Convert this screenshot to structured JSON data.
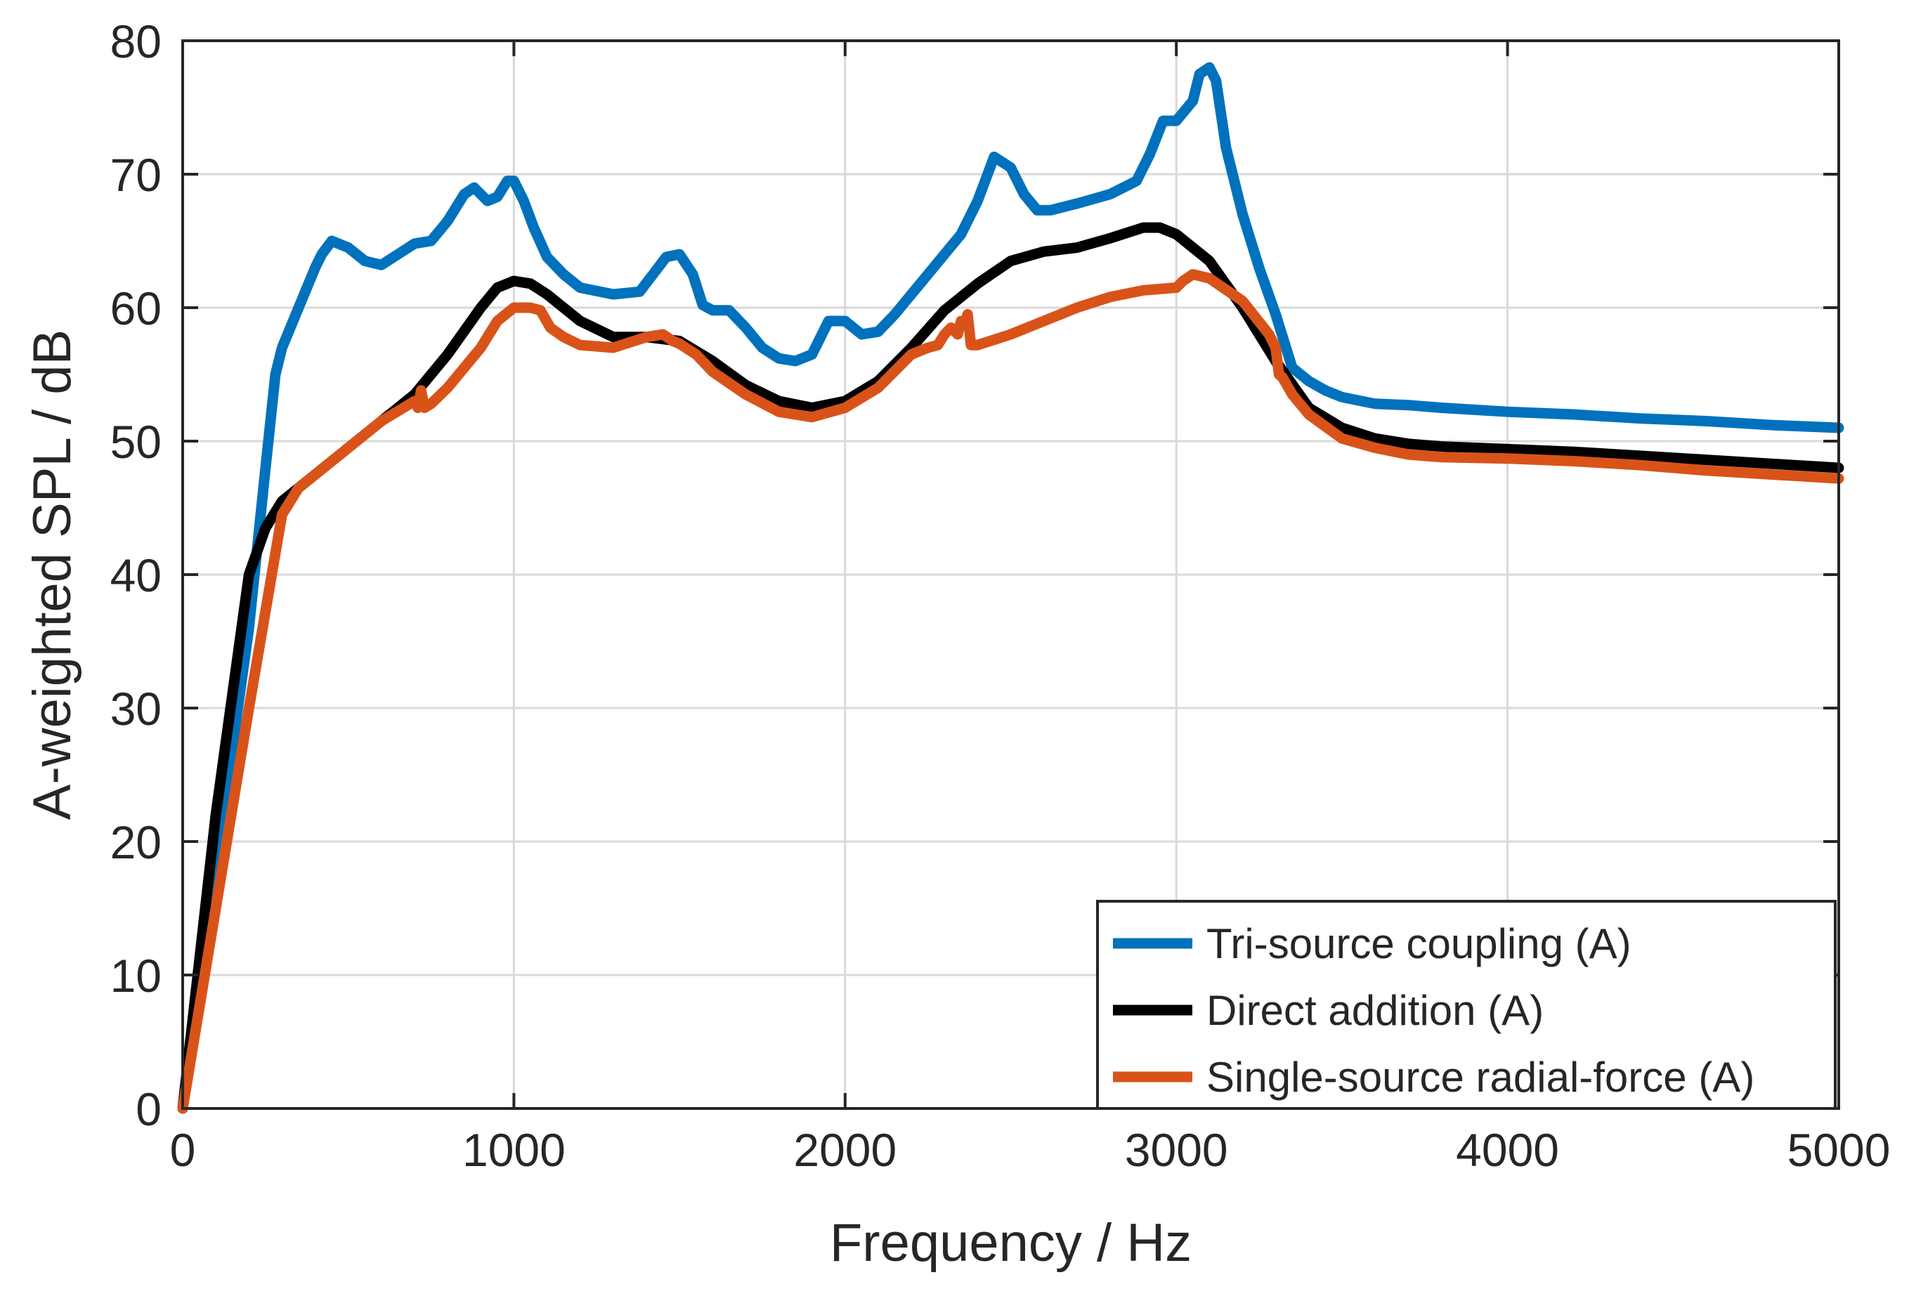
{
  "chart_data": {
    "type": "line",
    "title": "",
    "xlabel": "Frequency / Hz",
    "ylabel": "A-weighted SPL / dB",
    "xlim": [
      0,
      5000
    ],
    "ylim": [
      0,
      80
    ],
    "xticks": [
      0,
      1000,
      2000,
      3000,
      4000,
      5000
    ],
    "yticks": [
      0,
      10,
      20,
      30,
      40,
      50,
      60,
      70,
      80
    ],
    "xtick_labels": [
      "0",
      "1000",
      "2000",
      "3000",
      "4000",
      "5000"
    ],
    "ytick_labels": [
      "0",
      "10",
      "20",
      "30",
      "40",
      "50",
      "60",
      "70",
      "80"
    ],
    "grid": true,
    "legend_position": "bottom-right",
    "series": [
      {
        "name": "Tri-source coupling (A)",
        "color": "#0072BD",
        "x": [
          0,
          100,
          200,
          250,
          280,
          300,
          350,
          400,
          420,
          450,
          500,
          550,
          600,
          650,
          700,
          750,
          800,
          850,
          880,
          920,
          950,
          980,
          1000,
          1030,
          1060,
          1100,
          1150,
          1200,
          1300,
          1380,
          1420,
          1460,
          1500,
          1540,
          1570,
          1600,
          1650,
          1700,
          1750,
          1800,
          1850,
          1900,
          1950,
          2000,
          2050,
          2100,
          2150,
          2200,
          2250,
          2300,
          2350,
          2400,
          2450,
          2500,
          2540,
          2580,
          2620,
          2700,
          2800,
          2880,
          2920,
          2960,
          3000,
          3050,
          3070,
          3100,
          3120,
          3150,
          3200,
          3250,
          3300,
          3350,
          3400,
          3450,
          3500,
          3600,
          3700,
          3800,
          4000,
          4200,
          4400,
          4600,
          4800,
          5000
        ],
        "values": [
          0,
          18,
          36,
          48,
          55,
          57,
          60,
          63,
          64,
          65,
          64.5,
          63.5,
          63.2,
          64,
          64.8,
          65,
          66.5,
          68.5,
          69,
          68,
          68.3,
          69.5,
          69.5,
          68,
          66,
          63.8,
          62.5,
          61.5,
          61,
          61.2,
          62.5,
          63.8,
          64,
          62.5,
          60.2,
          59.8,
          59.8,
          58.5,
          57,
          56.2,
          56,
          56.5,
          59,
          59,
          58,
          58.2,
          59.5,
          61,
          62.5,
          64,
          65.5,
          68,
          71.3,
          70.5,
          68.5,
          67.3,
          67.3,
          67.8,
          68.5,
          69.5,
          71.5,
          74,
          74,
          75.5,
          77.5,
          78,
          77,
          72,
          67,
          63,
          59.5,
          55.5,
          54.5,
          53.8,
          53.3,
          52.8,
          52.7,
          52.5,
          52.2,
          52,
          51.7,
          51.5,
          51.2,
          51
        ],
        "legend_label": "Tri-source coupling (A)"
      },
      {
        "name": "Direct addition (A)",
        "color": "#000000",
        "x": [
          0,
          100,
          200,
          250,
          300,
          400,
          500,
          600,
          700,
          800,
          900,
          950,
          1000,
          1050,
          1100,
          1200,
          1300,
          1400,
          1500,
          1600,
          1700,
          1800,
          1900,
          2000,
          2100,
          2200,
          2300,
          2400,
          2500,
          2600,
          2700,
          2800,
          2900,
          2950,
          3000,
          3100,
          3200,
          3300,
          3400,
          3500,
          3600,
          3700,
          3800,
          4000,
          4200,
          4400,
          4600,
          4800,
          5000
        ],
        "values": [
          0,
          22,
          40,
          43.5,
          45.5,
          47.5,
          49.5,
          51.5,
          53.5,
          56.5,
          60,
          61.5,
          62,
          61.8,
          61,
          59,
          57.8,
          57.8,
          57.5,
          56,
          54.2,
          53,
          52.5,
          53,
          54.5,
          57,
          59.8,
          61.8,
          63.5,
          64.2,
          64.5,
          65.2,
          66,
          66,
          65.5,
          63.5,
          60,
          56,
          52.5,
          51,
          50.2,
          49.8,
          49.6,
          49.4,
          49.2,
          48.9,
          48.6,
          48.3,
          48
        ],
        "legend_label": "Direct addition (A)"
      },
      {
        "name": "Single-source radial-force (A)",
        "color": "#D95319",
        "x": [
          0,
          100,
          200,
          300,
          350,
          400,
          500,
          600,
          700,
          710,
          720,
          730,
          750,
          800,
          900,
          950,
          1000,
          1050,
          1080,
          1110,
          1150,
          1200,
          1300,
          1400,
          1450,
          1480,
          1500,
          1550,
          1600,
          1700,
          1800,
          1900,
          2000,
          2100,
          2200,
          2250,
          2280,
          2300,
          2320,
          2340,
          2350,
          2360,
          2370,
          2380,
          2400,
          2500,
          2600,
          2700,
          2800,
          2900,
          3000,
          3020,
          3050,
          3100,
          3200,
          3280,
          3300,
          3310,
          3320,
          3350,
          3400,
          3500,
          3600,
          3700,
          3800,
          4000,
          4200,
          4400,
          4600,
          4800,
          5000
        ],
        "values": [
          0,
          15,
          30,
          44.5,
          46.5,
          47.5,
          49.5,
          51.5,
          53,
          52.5,
          53.8,
          52.5,
          52.8,
          54,
          57,
          59,
          60,
          60,
          59.8,
          58.5,
          57.8,
          57.2,
          57,
          57.8,
          58,
          57.5,
          57.3,
          56.5,
          55.2,
          53.5,
          52.2,
          51.8,
          52.5,
          54,
          56.5,
          57,
          57.2,
          58,
          58.5,
          58,
          59,
          58.8,
          59.5,
          57.2,
          57.2,
          58,
          59,
          60,
          60.8,
          61.3,
          61.5,
          62,
          62.5,
          62.2,
          60.5,
          58,
          57,
          55,
          54.8,
          53.5,
          52,
          50.2,
          49.5,
          49,
          48.8,
          48.7,
          48.5,
          48.2,
          47.8,
          47.5,
          47.2
        ],
        "legend_label": "Single-source radial-force (A)"
      }
    ]
  }
}
